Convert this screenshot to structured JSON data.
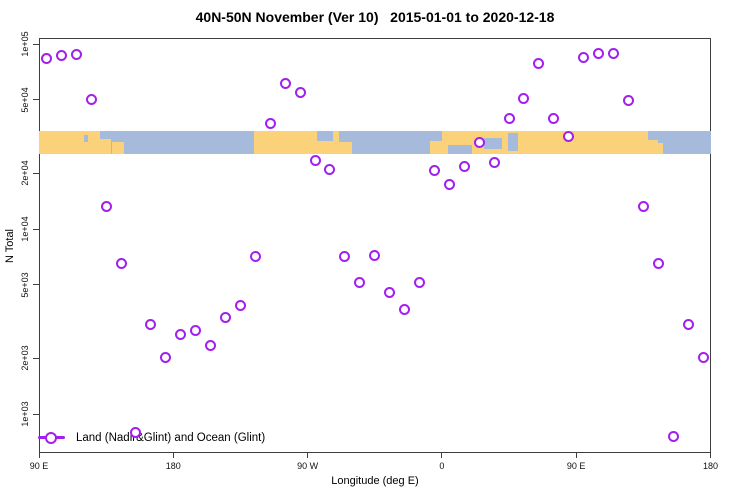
{
  "chart_data": {
    "type": "scatter",
    "title": "40N-50N November (Ver 10)   2015-01-01 to 2020-12-18",
    "xlabel": "Longitude (deg E)",
    "ylabel": "N Total",
    "x_axis": {
      "min": 90,
      "max": 540,
      "note": "longitude increases eastward and wraps past 180",
      "ticks": [
        {
          "lon": 90,
          "label": "90 E"
        },
        {
          "lon": 180,
          "label": "180"
        },
        {
          "lon": 270,
          "label": "90 W"
        },
        {
          "lon": 360,
          "label": "0"
        },
        {
          "lon": 450,
          "label": "90 E"
        },
        {
          "lon": 540,
          "label": "180"
        }
      ]
    },
    "y_axis": {
      "scale": "log10",
      "min": 1000,
      "max": 100000,
      "ticks": [
        {
          "v": 100000,
          "label": "1e+05"
        },
        {
          "v": 50000,
          "label": "5e+04"
        },
        {
          "v": 20000,
          "label": "2e+04"
        },
        {
          "v": 10000,
          "label": "1e+04"
        },
        {
          "v": 5000,
          "label": "5e+03"
        },
        {
          "v": 2000,
          "label": "2e+03"
        },
        {
          "v": 1000,
          "label": "1e+03"
        }
      ]
    },
    "marker": {
      "shape": "open-circle",
      "color": "#a21fee"
    },
    "map_band": {
      "value_top": 34000,
      "value_bottom": 25500,
      "ocean_color": "#a6bbdb",
      "land_color": "#fbd17a",
      "land_segments": [
        {
          "from": 90,
          "to": 131,
          "top": 0,
          "bottom": 1
        },
        {
          "from": 131,
          "to": 138,
          "top": 0.35,
          "bottom": 1
        },
        {
          "from": 139,
          "to": 147,
          "top": 0.5,
          "bottom": 1
        },
        {
          "from": 234,
          "to": 300,
          "top": 0,
          "bottom": 1
        },
        {
          "from": 352,
          "to": 505,
          "top": 0,
          "bottom": 1
        },
        {
          "from": 505,
          "to": 508,
          "top": 0.55,
          "bottom": 1
        }
      ],
      "ocean_patches": [
        {
          "from": 120,
          "to": 123,
          "top": 0.2,
          "bottom": 0.5
        },
        {
          "from": 276,
          "to": 287,
          "top": 0,
          "bottom": 0.45
        },
        {
          "from": 291,
          "to": 300,
          "top": 0,
          "bottom": 0.5
        },
        {
          "from": 352,
          "to": 360,
          "top": 0,
          "bottom": 0.45
        },
        {
          "from": 364,
          "to": 380,
          "top": 0.6,
          "bottom": 1
        },
        {
          "from": 388,
          "to": 400,
          "top": 0.3,
          "bottom": 0.8
        },
        {
          "from": 404,
          "to": 411,
          "top": 0.1,
          "bottom": 0.9
        },
        {
          "from": 498,
          "to": 505,
          "top": 0,
          "bottom": 0.4
        }
      ]
    },
    "series": [
      {
        "name": "Land (Nadir&Glint) and Ocean (Glint)",
        "points": [
          [
            95,
            84000
          ],
          [
            105,
            87000
          ],
          [
            115,
            88000
          ],
          [
            125,
            50000
          ],
          [
            135,
            13200
          ],
          [
            145,
            6500
          ],
          [
            155,
            790
          ],
          [
            165,
            3060
          ],
          [
            175,
            2010
          ],
          [
            185,
            2700
          ],
          [
            195,
            2840
          ],
          [
            205,
            2360
          ],
          [
            215,
            3340
          ],
          [
            225,
            3880
          ],
          [
            235,
            7060
          ],
          [
            245,
            37000
          ],
          [
            255,
            61500
          ],
          [
            265,
            55000
          ],
          [
            275,
            23600
          ],
          [
            285,
            21100
          ],
          [
            295,
            7060
          ],
          [
            305,
            5170
          ],
          [
            315,
            7230
          ],
          [
            325,
            4510
          ],
          [
            335,
            3650
          ],
          [
            345,
            5170
          ],
          [
            355,
            20600
          ],
          [
            365,
            17300
          ],
          [
            375,
            21900
          ],
          [
            385,
            29500
          ],
          [
            395,
            23000
          ],
          [
            405,
            39800
          ],
          [
            415,
            51000
          ],
          [
            425,
            78900
          ],
          [
            435,
            39800
          ],
          [
            445,
            31800
          ],
          [
            455,
            85000
          ],
          [
            465,
            88300
          ],
          [
            475,
            88300
          ],
          [
            485,
            49800
          ],
          [
            495,
            13200
          ],
          [
            505,
            6470
          ],
          [
            515,
            760
          ],
          [
            525,
            3030
          ],
          [
            535,
            2010
          ]
        ]
      }
    ],
    "legend": {
      "position": "bottom-left-inside"
    }
  }
}
